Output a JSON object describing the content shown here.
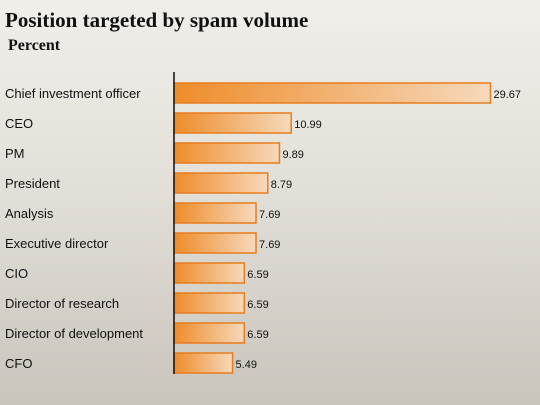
{
  "chart_data": {
    "type": "bar",
    "orientation": "horizontal",
    "title": "Position targeted by spam volume",
    "subtitle": "Percent",
    "categories": [
      "Chief investment officer",
      "CEO",
      "PM",
      "President",
      "Analysis",
      "Executive director",
      "CIO",
      "Director of research",
      "Director of development",
      "CFO"
    ],
    "values": [
      29.67,
      10.99,
      9.89,
      8.79,
      7.69,
      7.69,
      6.59,
      6.59,
      6.59,
      5.49
    ],
    "xlim": [
      0,
      30
    ],
    "grid": false,
    "legend": "none",
    "colors": {
      "bar_dark": "#ef8c2a",
      "bar_light": "#f6d9bb",
      "bar_border": "#e87d1e",
      "axis": "#111111"
    }
  }
}
